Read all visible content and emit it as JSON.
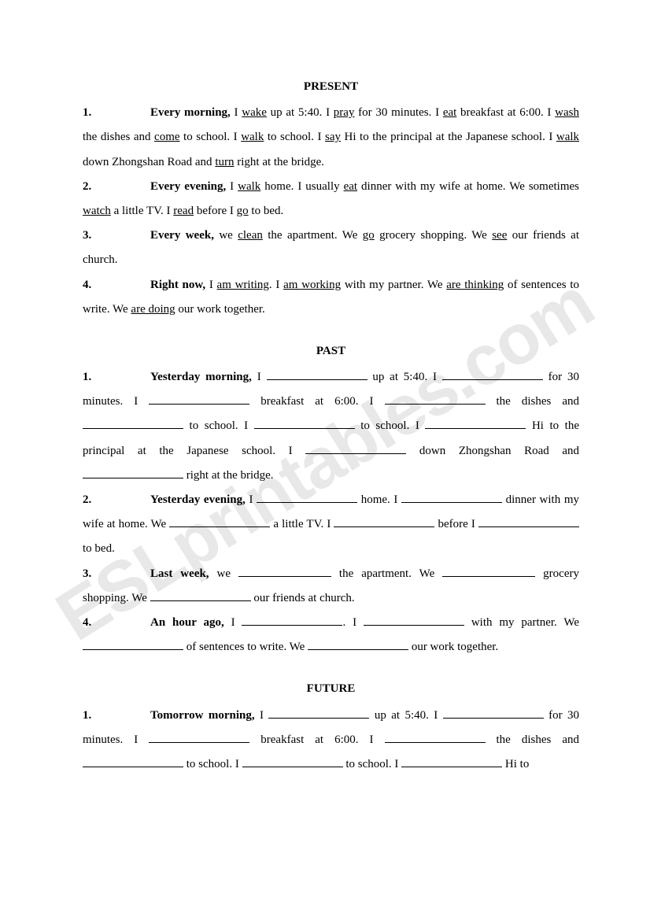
{
  "watermark": "ESLprintables.com",
  "sections": {
    "present": {
      "title": "PRESENT",
      "items": [
        {
          "num": "1.",
          "lead": "Every morning,",
          "parts": [
            " I ",
            {
              "u": "wake"
            },
            " up at 5:40.  I ",
            {
              "u": "pray"
            },
            " for 30 minutes.  I ",
            {
              "u": "eat"
            },
            " breakfast at 6:00.  I ",
            {
              "u": "wash"
            },
            " the dishes and ",
            {
              "u": "come"
            },
            " to school.  I ",
            {
              "u": "walk"
            },
            " to school.  I ",
            {
              "u": "say"
            },
            " Hi to the principal at the Japanese school.  I ",
            {
              "u": "walk"
            },
            " down Zhongshan Road and ",
            {
              "u": "turn"
            },
            " right at the bridge."
          ]
        },
        {
          "num": "2.",
          "lead": "Every evening,",
          "parts": [
            " I ",
            {
              "u": "walk"
            },
            " home.  I usually ",
            {
              "u": "eat"
            },
            " dinner with my wife at home.  We sometimes ",
            {
              "u": "watch"
            },
            " a little TV.  I ",
            {
              "u": "read"
            },
            " before I ",
            {
              "u": "go"
            },
            " to bed."
          ]
        },
        {
          "num": "3.",
          "lead": "Every week,",
          "parts": [
            " we ",
            {
              "u": "clean"
            },
            " the apartment.  We ",
            {
              "u": "go"
            },
            " grocery shopping.  We ",
            {
              "u": "see"
            },
            " our friends at church."
          ]
        },
        {
          "num": "4.",
          "lead": "Right now,",
          "parts": [
            " I ",
            {
              "u": "am writing"
            },
            ".  I ",
            {
              "u": "am working"
            },
            " with my partner.  We ",
            {
              "u": "are thinking"
            },
            " of sentences to write.  We ",
            {
              "u": "are doing"
            },
            " our work together."
          ]
        }
      ]
    },
    "past": {
      "title": "PAST",
      "items": [
        {
          "num": "1.",
          "lead": "Yesterday morning,",
          "parts": [
            " I ",
            {
              "blank": true
            },
            " up at 5:40.  I ",
            {
              "blank": true
            },
            " for 30 minutes.  I ",
            {
              "blank": true
            },
            " breakfast at 6:00.  I ",
            {
              "blank": true
            },
            " the dishes and ",
            {
              "blank": true
            },
            " to school.  I ",
            {
              "blank": true
            },
            " to school.  I ",
            {
              "blank": true
            },
            " Hi to the principal at the Japanese school.  I ",
            {
              "blank": true
            },
            " down Zhongshan Road and ",
            {
              "blank": true
            },
            " right at the bridge."
          ]
        },
        {
          "num": "2.",
          "lead": "Yesterday evening,",
          "parts": [
            " I ",
            {
              "blank": true
            },
            " home.  I ",
            {
              "blank": true
            },
            " dinner with my wife at home.  We ",
            {
              "blank": true
            },
            " a little TV.  I ",
            {
              "blank": true
            },
            " before I ",
            {
              "blank": true
            },
            " to bed."
          ]
        },
        {
          "num": "3.",
          "lead": "Last week,",
          "parts": [
            " we ",
            {
              "blank": true,
              "s": true
            },
            " the apartment.  We ",
            {
              "blank": true,
              "s": true
            },
            " grocery shopping.  We ",
            {
              "blank": true
            },
            " our friends at church."
          ]
        },
        {
          "num": "4.",
          "lead": "An hour ago,",
          "parts": [
            " I ",
            {
              "blank": true
            },
            ".  I ",
            {
              "blank": true
            },
            " with my partner.  We ",
            {
              "blank": true
            },
            " of sentences to write.  We ",
            {
              "blank": true
            },
            " our work together."
          ]
        }
      ]
    },
    "future": {
      "title": "FUTURE",
      "items": [
        {
          "num": "1.",
          "lead": "Tomorrow morning,",
          "parts": [
            " I ",
            {
              "blank": true
            },
            " up at 5:40.  I ",
            {
              "blank": true
            },
            " for 30 minutes.  I ",
            {
              "blank": true
            },
            " breakfast at 6:00.  I ",
            {
              "blank": true
            },
            " the dishes and ",
            {
              "blank": true
            },
            " to school.  I ",
            {
              "blank": true
            },
            " to school.  I ",
            {
              "blank": true
            },
            " Hi to"
          ]
        }
      ]
    }
  }
}
